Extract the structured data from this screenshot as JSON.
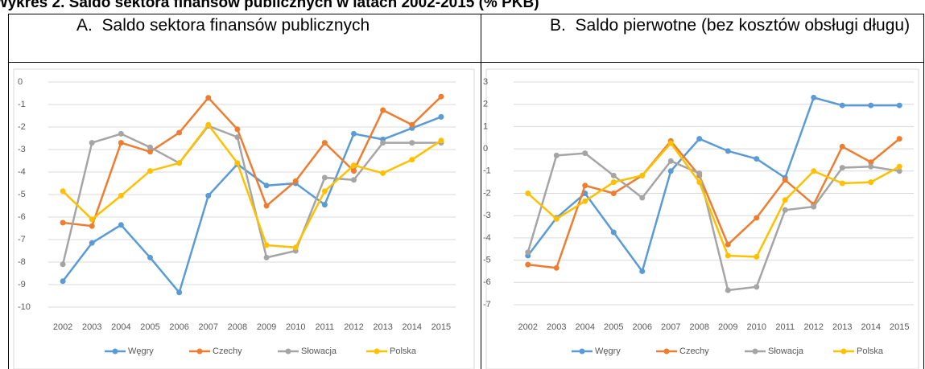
{
  "heading": "Wykres 2. Saldo sektora finansów publicznych w latach 2002-2015 (% PKB)",
  "chart_data": [
    {
      "type": "line",
      "title": "A.  Saldo sektora finansów publicznych",
      "categories": [
        "2002",
        "2003",
        "2004",
        "2005",
        "2006",
        "2007",
        "2008",
        "2009",
        "2010",
        "2011",
        "2012",
        "2013",
        "2014",
        "2015"
      ],
      "ylim": [
        -10,
        0
      ],
      "yticks": [
        0,
        -1,
        -2,
        -3,
        -4,
        -5,
        -6,
        -7,
        -8,
        -9,
        -10
      ],
      "grid": true,
      "legend": "bottom",
      "series": [
        {
          "name": "Węgry",
          "color": "#5b9bd5",
          "values": [
            -8.85,
            -7.15,
            -6.35,
            -7.8,
            -9.35,
            -5.05,
            -3.65,
            -4.6,
            -4.5,
            -5.45,
            -2.3,
            -2.55,
            -2.05,
            -1.55
          ]
        },
        {
          "name": "Czechy",
          "color": "#ed7d31",
          "values": [
            -6.25,
            -6.4,
            -2.7,
            -3.1,
            -2.25,
            -0.7,
            -2.1,
            -5.5,
            -4.4,
            -2.7,
            -3.95,
            -1.25,
            -1.9,
            -0.65
          ]
        },
        {
          "name": "Słowacja",
          "color": "#a5a5a5",
          "values": [
            -8.1,
            -2.7,
            -2.3,
            -2.9,
            -3.6,
            -1.95,
            -2.45,
            -7.8,
            -7.5,
            -4.25,
            -4.35,
            -2.7,
            -2.7,
            -2.7
          ]
        },
        {
          "name": "Polska",
          "color": "#ffc000",
          "values": [
            -4.85,
            -6.1,
            -5.05,
            -3.95,
            -3.6,
            -1.9,
            -3.6,
            -7.25,
            -7.35,
            -4.85,
            -3.7,
            -4.05,
            -3.45,
            -2.6
          ]
        }
      ]
    },
    {
      "type": "line",
      "title": "B.  Saldo pierwotne (bez kosztów obsługi długu)",
      "categories": [
        "2002",
        "2003",
        "2004",
        "2005",
        "2006",
        "2007",
        "2008",
        "2009",
        "2010",
        "2011",
        "2012",
        "2013",
        "2014",
        "2015"
      ],
      "ylim": [
        -7,
        3
      ],
      "yticks": [
        3,
        2,
        1,
        0,
        -1,
        -2,
        -3,
        -4,
        -5,
        -6,
        -7
      ],
      "grid": true,
      "legend": "bottom",
      "series": [
        {
          "name": "Węgry",
          "color": "#5b9bd5",
          "values": [
            -4.8,
            -3.1,
            -2.0,
            -3.75,
            -5.5,
            -1.0,
            0.45,
            -0.1,
            -0.45,
            -1.3,
            2.3,
            1.95,
            1.95,
            1.95
          ]
        },
        {
          "name": "Czechy",
          "color": "#ed7d31",
          "values": [
            -5.2,
            -5.35,
            -1.65,
            -2.0,
            -1.2,
            0.35,
            -1.2,
            -4.3,
            -3.1,
            -1.4,
            -2.5,
            0.1,
            -0.6,
            0.45
          ]
        },
        {
          "name": "Słowacja",
          "color": "#a5a5a5",
          "values": [
            -4.65,
            -0.3,
            -0.2,
            -1.2,
            -2.2,
            -0.55,
            -1.1,
            -6.35,
            -6.2,
            -2.75,
            -2.6,
            -0.85,
            -0.8,
            -1.0
          ]
        },
        {
          "name": "Polska",
          "color": "#ffc000",
          "values": [
            -2.0,
            -3.15,
            -2.35,
            -1.5,
            -1.2,
            0.25,
            -1.5,
            -4.8,
            -4.85,
            -2.3,
            -1.0,
            -1.55,
            -1.5,
            -0.8
          ]
        }
      ]
    }
  ]
}
